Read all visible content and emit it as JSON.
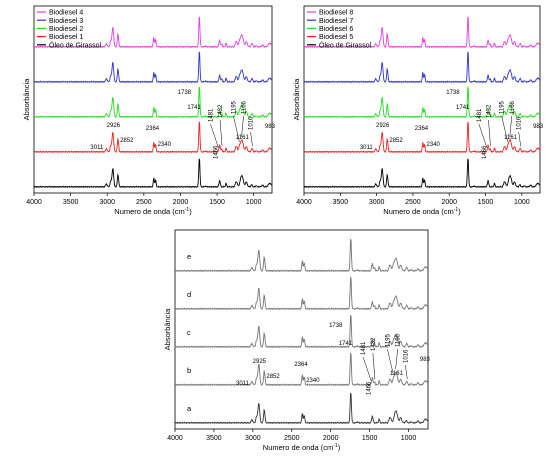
{
  "chart_data": [
    {
      "type": "line",
      "xlabel": "Numero de onda (cm",
      "xlabel_sup": "-1",
      "xlabel_end": ")",
      "ylabel": "Absorbância",
      "xlim": [
        4000,
        750
      ],
      "x_ticks": [
        4000,
        3500,
        3000,
        2500,
        2000,
        1500,
        1000
      ],
      "grid": false,
      "legend_position": "top-left",
      "series": [
        {
          "name": "Biodiesel 4",
          "color": "#e040e0"
        },
        {
          "name": "Biodiesel 3",
          "color": "#3333cc"
        },
        {
          "name": "Biodiesel 2",
          "color": "#22dd22"
        },
        {
          "name": "Biodiesel 1",
          "color": "#ee2222"
        },
        {
          "name": "Óleo de Girassol",
          "color": "#000000"
        }
      ],
      "peak_labels_bottom": [
        {
          "x": 3011,
          "text": "3011"
        },
        {
          "x": 2926,
          "text": "2926"
        },
        {
          "x": 2852,
          "text": "2852"
        },
        {
          "x": 2364,
          "text": "2364"
        },
        {
          "x": 2340,
          "text": "2340"
        },
        {
          "x": 1741,
          "text": "1741"
        },
        {
          "x": 1466,
          "text": "1466"
        },
        {
          "x": 1161,
          "text": "1161"
        }
      ],
      "peak_labels_ester": [
        {
          "x": 1738,
          "text": "1738"
        },
        {
          "x": 1481,
          "text": "1481"
        },
        {
          "x": 1432,
          "text": "1432"
        },
        {
          "x": 1195,
          "text": "1195"
        },
        {
          "x": 1166,
          "text": "1166"
        },
        {
          "x": 1016,
          "text": "1016"
        },
        {
          "x": 983,
          "text": "983"
        }
      ]
    },
    {
      "type": "line",
      "xlabel": "Numero de onda (cm",
      "xlabel_sup": "-1",
      "xlabel_end": ")",
      "ylabel": "Absorbância",
      "xlim": [
        4000,
        750
      ],
      "x_ticks": [
        4000,
        3500,
        3000,
        2500,
        2000,
        1500,
        1000
      ],
      "grid": false,
      "legend_position": "top-left",
      "series": [
        {
          "name": "Biodiesel 8",
          "color": "#e040e0"
        },
        {
          "name": "Biodiesel 7",
          "color": "#3333cc"
        },
        {
          "name": "Biodiesel 6",
          "color": "#22dd22"
        },
        {
          "name": "Biodiesel 5",
          "color": "#ee2222"
        },
        {
          "name": "Óleo de Girassol",
          "color": "#000000"
        }
      ],
      "peak_labels_bottom": [
        {
          "x": 3011,
          "text": "3011"
        },
        {
          "x": 2926,
          "text": "2926"
        },
        {
          "x": 2852,
          "text": "2852"
        },
        {
          "x": 2364,
          "text": "2364"
        },
        {
          "x": 2340,
          "text": "2340"
        },
        {
          "x": 1741,
          "text": "1741"
        },
        {
          "x": 1466,
          "text": "1466"
        },
        {
          "x": 1161,
          "text": "1161"
        }
      ],
      "peak_labels_ester": [
        {
          "x": 1738,
          "text": "1738"
        },
        {
          "x": 1481,
          "text": "1481"
        },
        {
          "x": 1432,
          "text": "1432"
        },
        {
          "x": 1195,
          "text": "1195"
        },
        {
          "x": 1166,
          "text": "1166"
        },
        {
          "x": 1016,
          "text": "1016"
        },
        {
          "x": 983,
          "text": "983"
        }
      ]
    },
    {
      "type": "line",
      "xlabel": "Numero de onda (cm",
      "xlabel_sup": "-1",
      "xlabel_end": ")",
      "ylabel": "Absorbância",
      "xlim": [
        4000,
        750
      ],
      "x_ticks": [
        4000,
        3500,
        3000,
        2500,
        2000,
        1500,
        1000
      ],
      "grid": false,
      "series": [
        {
          "name": "e",
          "color": "#777777"
        },
        {
          "name": "d",
          "color": "#777777"
        },
        {
          "name": "c",
          "color": "#777777"
        },
        {
          "name": "b",
          "color": "#777777"
        },
        {
          "name": "a",
          "color": "#333333"
        }
      ],
      "peak_labels_bottom": [
        {
          "x": 3011,
          "text": "3011"
        },
        {
          "x": 2925,
          "text": "2925"
        },
        {
          "x": 2852,
          "text": "2852"
        },
        {
          "x": 2364,
          "text": "2364"
        },
        {
          "x": 2340,
          "text": "2340"
        },
        {
          "x": 1741,
          "text": "1741"
        },
        {
          "x": 1466,
          "text": "1466"
        },
        {
          "x": 1161,
          "text": "1161"
        }
      ],
      "peak_labels_ester": [
        {
          "x": 1738,
          "text": "1738"
        },
        {
          "x": 1481,
          "text": "1481"
        },
        {
          "x": 1432,
          "text": "1432"
        },
        {
          "x": 1195,
          "text": "1195"
        },
        {
          "x": 1166,
          "text": "1166"
        },
        {
          "x": 1016,
          "text": "1016"
        },
        {
          "x": 983,
          "text": "983"
        }
      ]
    }
  ]
}
